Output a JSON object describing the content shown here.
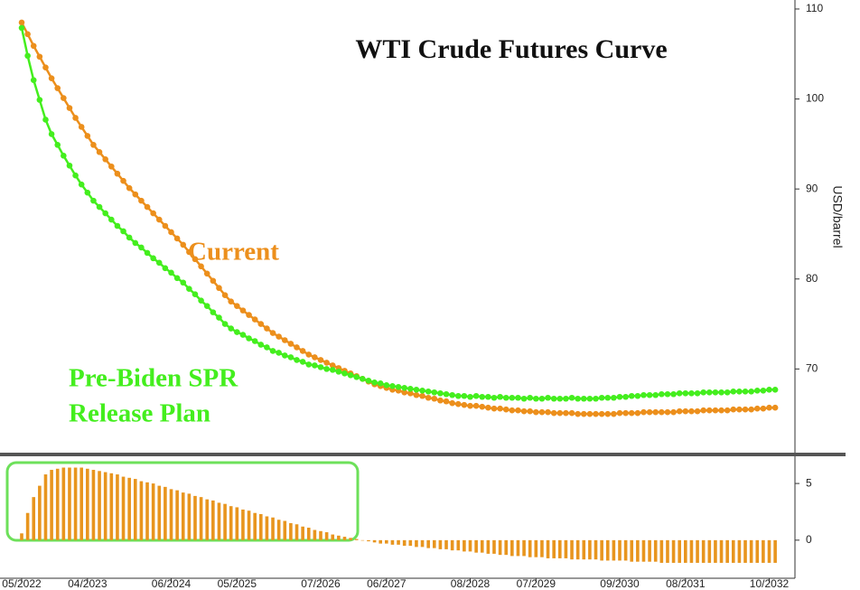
{
  "chart_data": [
    {
      "type": "line",
      "title": "WTI Crude Futures Curve",
      "y_label": "USD/barrel",
      "annotations": [
        "Current",
        "Pre-Biden SPR",
        "Release Plan"
      ],
      "ylim": [
        60.6,
        111
      ],
      "yticks": [
        70,
        80,
        90,
        100,
        110
      ],
      "series": [
        {
          "name": "Current",
          "color": "#ec8f1c",
          "values": [
            108.5,
            107.2,
            105.9,
            104.7,
            103.5,
            102.3,
            101.2,
            100.1,
            99.0,
            97.9,
            96.9,
            95.9,
            94.9,
            94.1,
            93.3,
            92.5,
            91.7,
            90.9,
            90.1,
            89.4,
            88.7,
            88.0,
            87.3,
            86.6,
            85.9,
            85.2,
            84.5,
            83.8,
            83.0,
            82.2,
            81.4,
            80.6,
            79.8,
            79.0,
            78.2,
            77.5,
            77.0,
            76.5,
            76.0,
            75.5,
            75.0,
            74.5,
            74.0,
            73.6,
            73.2,
            72.8,
            72.4,
            72.0,
            71.6,
            71.3,
            71.0,
            70.7,
            70.4,
            70.1,
            69.8,
            69.5,
            69.2,
            68.9,
            68.6,
            68.3,
            68.1,
            67.9,
            67.7,
            67.6,
            67.4,
            67.3,
            67.1,
            67.0,
            66.8,
            66.7,
            66.5,
            66.4,
            66.2,
            66.1,
            66.0,
            65.9,
            65.9,
            65.8,
            65.7,
            65.6,
            65.6,
            65.5,
            65.4,
            65.4,
            65.3,
            65.3,
            65.2,
            65.2,
            65.2,
            65.1,
            65.1,
            65.1,
            65.1,
            65.0,
            65.0,
            65.0,
            65.0,
            65.0,
            65.0,
            65.0,
            65.1,
            65.1,
            65.1,
            65.1,
            65.2,
            65.2,
            65.2,
            65.2,
            65.2,
            65.2,
            65.3,
            65.3,
            65.3,
            65.3,
            65.4,
            65.4,
            65.4,
            65.4,
            65.4,
            65.5,
            65.5,
            65.5,
            65.5,
            65.6,
            65.6,
            65.7,
            65.7
          ]
        },
        {
          "name": "Pre-Biden SPR Release Plan",
          "color": "#44ee1e",
          "values": [
            107.9,
            104.8,
            102.1,
            99.9,
            97.7,
            96.1,
            94.9,
            93.7,
            92.6,
            91.5,
            90.5,
            89.6,
            88.7,
            88.0,
            87.3,
            86.6,
            85.9,
            85.3,
            84.6,
            84.0,
            83.5,
            82.9,
            82.3,
            81.8,
            81.2,
            80.7,
            80.1,
            79.6,
            78.9,
            78.3,
            77.6,
            77.0,
            76.3,
            75.7,
            75.0,
            74.5,
            74.1,
            73.8,
            73.4,
            73.1,
            72.7,
            72.4,
            72.0,
            71.8,
            71.5,
            71.3,
            71.0,
            70.8,
            70.5,
            70.4,
            70.2,
            70.0,
            69.9,
            69.7,
            69.5,
            69.3,
            69.1,
            68.9,
            68.7,
            68.5,
            68.4,
            68.2,
            68.1,
            68.0,
            67.9,
            67.8,
            67.7,
            67.6,
            67.5,
            67.4,
            67.3,
            67.2,
            67.1,
            67.0,
            67.0,
            66.9,
            67.0,
            66.9,
            66.9,
            66.8,
            66.9,
            66.8,
            66.8,
            66.8,
            66.7,
            66.8,
            66.7,
            66.7,
            66.8,
            66.7,
            66.7,
            66.7,
            66.8,
            66.7,
            66.7,
            66.7,
            66.7,
            66.8,
            66.8,
            66.8,
            66.9,
            66.9,
            67.0,
            67.0,
            67.1,
            67.1,
            67.1,
            67.2,
            67.2,
            67.2,
            67.3,
            67.3,
            67.3,
            67.3,
            67.4,
            67.4,
            67.4,
            67.4,
            67.4,
            67.5,
            67.5,
            67.5,
            67.5,
            67.6,
            67.6,
            67.7,
            67.7
          ]
        }
      ]
    },
    {
      "type": "bar",
      "color": "#e8951e",
      "ylim": [
        -3.2,
        7
      ],
      "yticks": [
        0,
        5
      ],
      "categories": [
        "05/2022",
        null,
        null,
        null,
        null,
        null,
        null,
        null,
        null,
        null,
        null,
        "04/2023",
        null,
        null,
        null,
        null,
        null,
        null,
        null,
        null,
        null,
        null,
        null,
        null,
        null,
        "06/2024",
        null,
        null,
        null,
        null,
        null,
        null,
        null,
        null,
        null,
        null,
        "05/2025",
        null,
        null,
        null,
        null,
        null,
        null,
        null,
        null,
        null,
        null,
        null,
        null,
        null,
        "07/2026",
        null,
        null,
        null,
        null,
        null,
        null,
        null,
        null,
        null,
        null,
        "06/2027",
        null,
        null,
        null,
        null,
        null,
        null,
        null,
        null,
        null,
        null,
        null,
        null,
        null,
        "08/2028",
        null,
        null,
        null,
        null,
        null,
        null,
        null,
        null,
        null,
        null,
        "07/2029",
        null,
        null,
        null,
        null,
        null,
        null,
        null,
        null,
        null,
        null,
        null,
        null,
        null,
        "09/2030",
        null,
        null,
        null,
        null,
        null,
        null,
        null,
        null,
        null,
        null,
        "08/2031",
        null,
        null,
        null,
        null,
        null,
        null,
        null,
        null,
        null,
        null,
        null,
        null,
        null,
        "10/2032",
        null
      ],
      "values": [
        0.6,
        2.4,
        3.8,
        4.8,
        5.8,
        6.2,
        6.3,
        6.4,
        6.4,
        6.4,
        6.4,
        6.3,
        6.2,
        6.1,
        6.0,
        5.9,
        5.8,
        5.6,
        5.5,
        5.4,
        5.2,
        5.1,
        5.0,
        4.8,
        4.7,
        4.5,
        4.4,
        4.2,
        4.1,
        3.9,
        3.8,
        3.6,
        3.5,
        3.3,
        3.2,
        3.0,
        2.9,
        2.7,
        2.6,
        2.4,
        2.3,
        2.1,
        2.0,
        1.8,
        1.7,
        1.5,
        1.4,
        1.2,
        1.1,
        0.9,
        0.8,
        0.7,
        0.5,
        0.4,
        0.3,
        0.2,
        0.1,
        0.0,
        -0.1,
        -0.2,
        -0.3,
        -0.3,
        -0.4,
        -0.4,
        -0.5,
        -0.5,
        -0.6,
        -0.6,
        -0.7,
        -0.7,
        -0.8,
        -0.8,
        -0.9,
        -0.9,
        -1.0,
        -1.0,
        -1.1,
        -1.1,
        -1.2,
        -1.2,
        -1.3,
        -1.3,
        -1.4,
        -1.4,
        -1.4,
        -1.5,
        -1.5,
        -1.5,
        -1.6,
        -1.6,
        -1.6,
        -1.6,
        -1.7,
        -1.7,
        -1.7,
        -1.7,
        -1.7,
        -1.8,
        -1.8,
        -1.8,
        -1.8,
        -1.8,
        -1.9,
        -1.9,
        -1.9,
        -1.9,
        -1.9,
        -2.0,
        -2.0,
        -2.0,
        -2.0,
        -2.0,
        -2.0,
        -2.0,
        -2.0,
        -2.0,
        -2.0,
        -2.0,
        -2.0,
        -2.0,
        -2.0,
        -2.0,
        -2.0,
        -2.0,
        -2.0,
        -2.0,
        -2.0
      ]
    }
  ]
}
